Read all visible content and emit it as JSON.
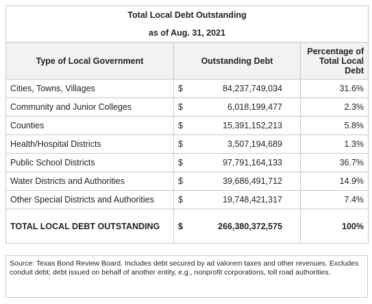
{
  "header": {
    "title": "Total Local Debt Outstanding",
    "subtitle": "as of Aug. 31, 2021"
  },
  "table": {
    "columns": [
      "Type of Local Government",
      "Outstanding Debt",
      "Percentage of Total Local Debt"
    ],
    "rows": [
      [
        "Cities, Towns, Villages",
        "$",
        "84,237,749,034",
        "31.6%"
      ],
      [
        "Community and Junior Colleges",
        "$",
        "6,018,199,477",
        "2.3%"
      ],
      [
        "Counties",
        "$",
        "15,391,152,213",
        "5.8%"
      ],
      [
        "Health/Hospital Districts",
        "$",
        "3,507,194,689",
        "1.3%"
      ],
      [
        "Public School Districts",
        "$",
        "97,791,164,133",
        "36.7%"
      ],
      [
        "Water Districts and Authorities",
        "$",
        "39,686,491,712",
        "14.9%"
      ],
      [
        "Other Special Districts and Authorities",
        "$",
        "19,748,421,317",
        "7.4%"
      ]
    ],
    "total": [
      "TOTAL LOCAL DEBT OUTSTANDING",
      "$",
      "266,380,372,575",
      "100%"
    ]
  },
  "source": "Source: Texas Bond Review Board. Includes debt secured by ad valorem taxes and other revenues. Excludes conduit debt; debt issued on behalf of another entity, e.g., nonprofit corporations, toll road authorities."
}
